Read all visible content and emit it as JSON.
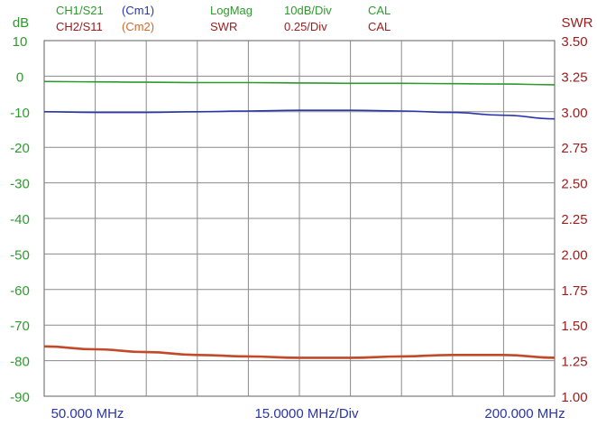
{
  "header": {
    "row1": [
      {
        "text": "CH1/S21",
        "color": "#2e9a2e"
      },
      {
        "text": "(Cm1)",
        "color": "#2a35a8"
      },
      {
        "text": "LogMag",
        "color": "#2e9a2e"
      },
      {
        "text": "10dB/Div",
        "color": "#2e9a2e"
      },
      {
        "text": "CAL",
        "color": "#2e9a2e"
      }
    ],
    "row2": [
      {
        "text": "CH2/S11",
        "color": "#9a1c1c"
      },
      {
        "text": "(Cm2)",
        "color": "#d2692a"
      },
      {
        "text": "SWR",
        "color": "#9a1c1c"
      },
      {
        "text": "0.25/Div",
        "color": "#9a1c1c"
      },
      {
        "text": "CAL",
        "color": "#9a1c1c"
      }
    ]
  },
  "chart_data": {
    "type": "line",
    "left_axis": {
      "label": "dB",
      "color": "#2e9a2e",
      "range": [
        -90,
        10
      ],
      "ticks": [
        "10",
        "0",
        "-10",
        "-20",
        "-30",
        "-40",
        "-50",
        "-60",
        "-70",
        "-80",
        "-90"
      ]
    },
    "right_axis": {
      "label": "SWR",
      "color": "#9a1c1c",
      "range": [
        1.0,
        3.5
      ],
      "ticks": [
        "3.50",
        "3.25",
        "3.00",
        "2.75",
        "2.50",
        "2.25",
        "2.00",
        "1.75",
        "1.50",
        "1.25",
        "1.00"
      ]
    },
    "x_axis": {
      "start_label": "50.000 MHz",
      "div_label": "15.0000 MHz/Div",
      "end_label": "200.000 MHz",
      "range_mhz": [
        50,
        200
      ],
      "color": "#2a35a8"
    },
    "grid": true,
    "series": [
      {
        "color": "#2e9a2e",
        "axis": "left",
        "x": [
          50,
          65,
          80,
          95,
          110,
          125,
          140,
          155,
          170,
          185,
          200
        ],
        "y": [
          -1.5,
          -1.6,
          -1.7,
          -1.8,
          -1.8,
          -1.9,
          -2.0,
          -2.0,
          -2.1,
          -2.2,
          -2.4
        ]
      },
      {
        "color": "#2a35a8",
        "axis": "left",
        "x": [
          50,
          65,
          80,
          95,
          110,
          125,
          140,
          155,
          170,
          185,
          200
        ],
        "y": [
          -10.0,
          -10.2,
          -10.2,
          -10.0,
          -9.8,
          -9.6,
          -9.6,
          -9.8,
          -10.2,
          -11.0,
          -12.0
        ]
      },
      {
        "color": "#c24a2a",
        "axis": "right",
        "x": [
          50,
          65,
          80,
          95,
          110,
          125,
          140,
          155,
          170,
          185,
          200
        ],
        "y": [
          1.35,
          1.33,
          1.31,
          1.29,
          1.28,
          1.27,
          1.27,
          1.28,
          1.29,
          1.29,
          1.27
        ]
      }
    ]
  }
}
